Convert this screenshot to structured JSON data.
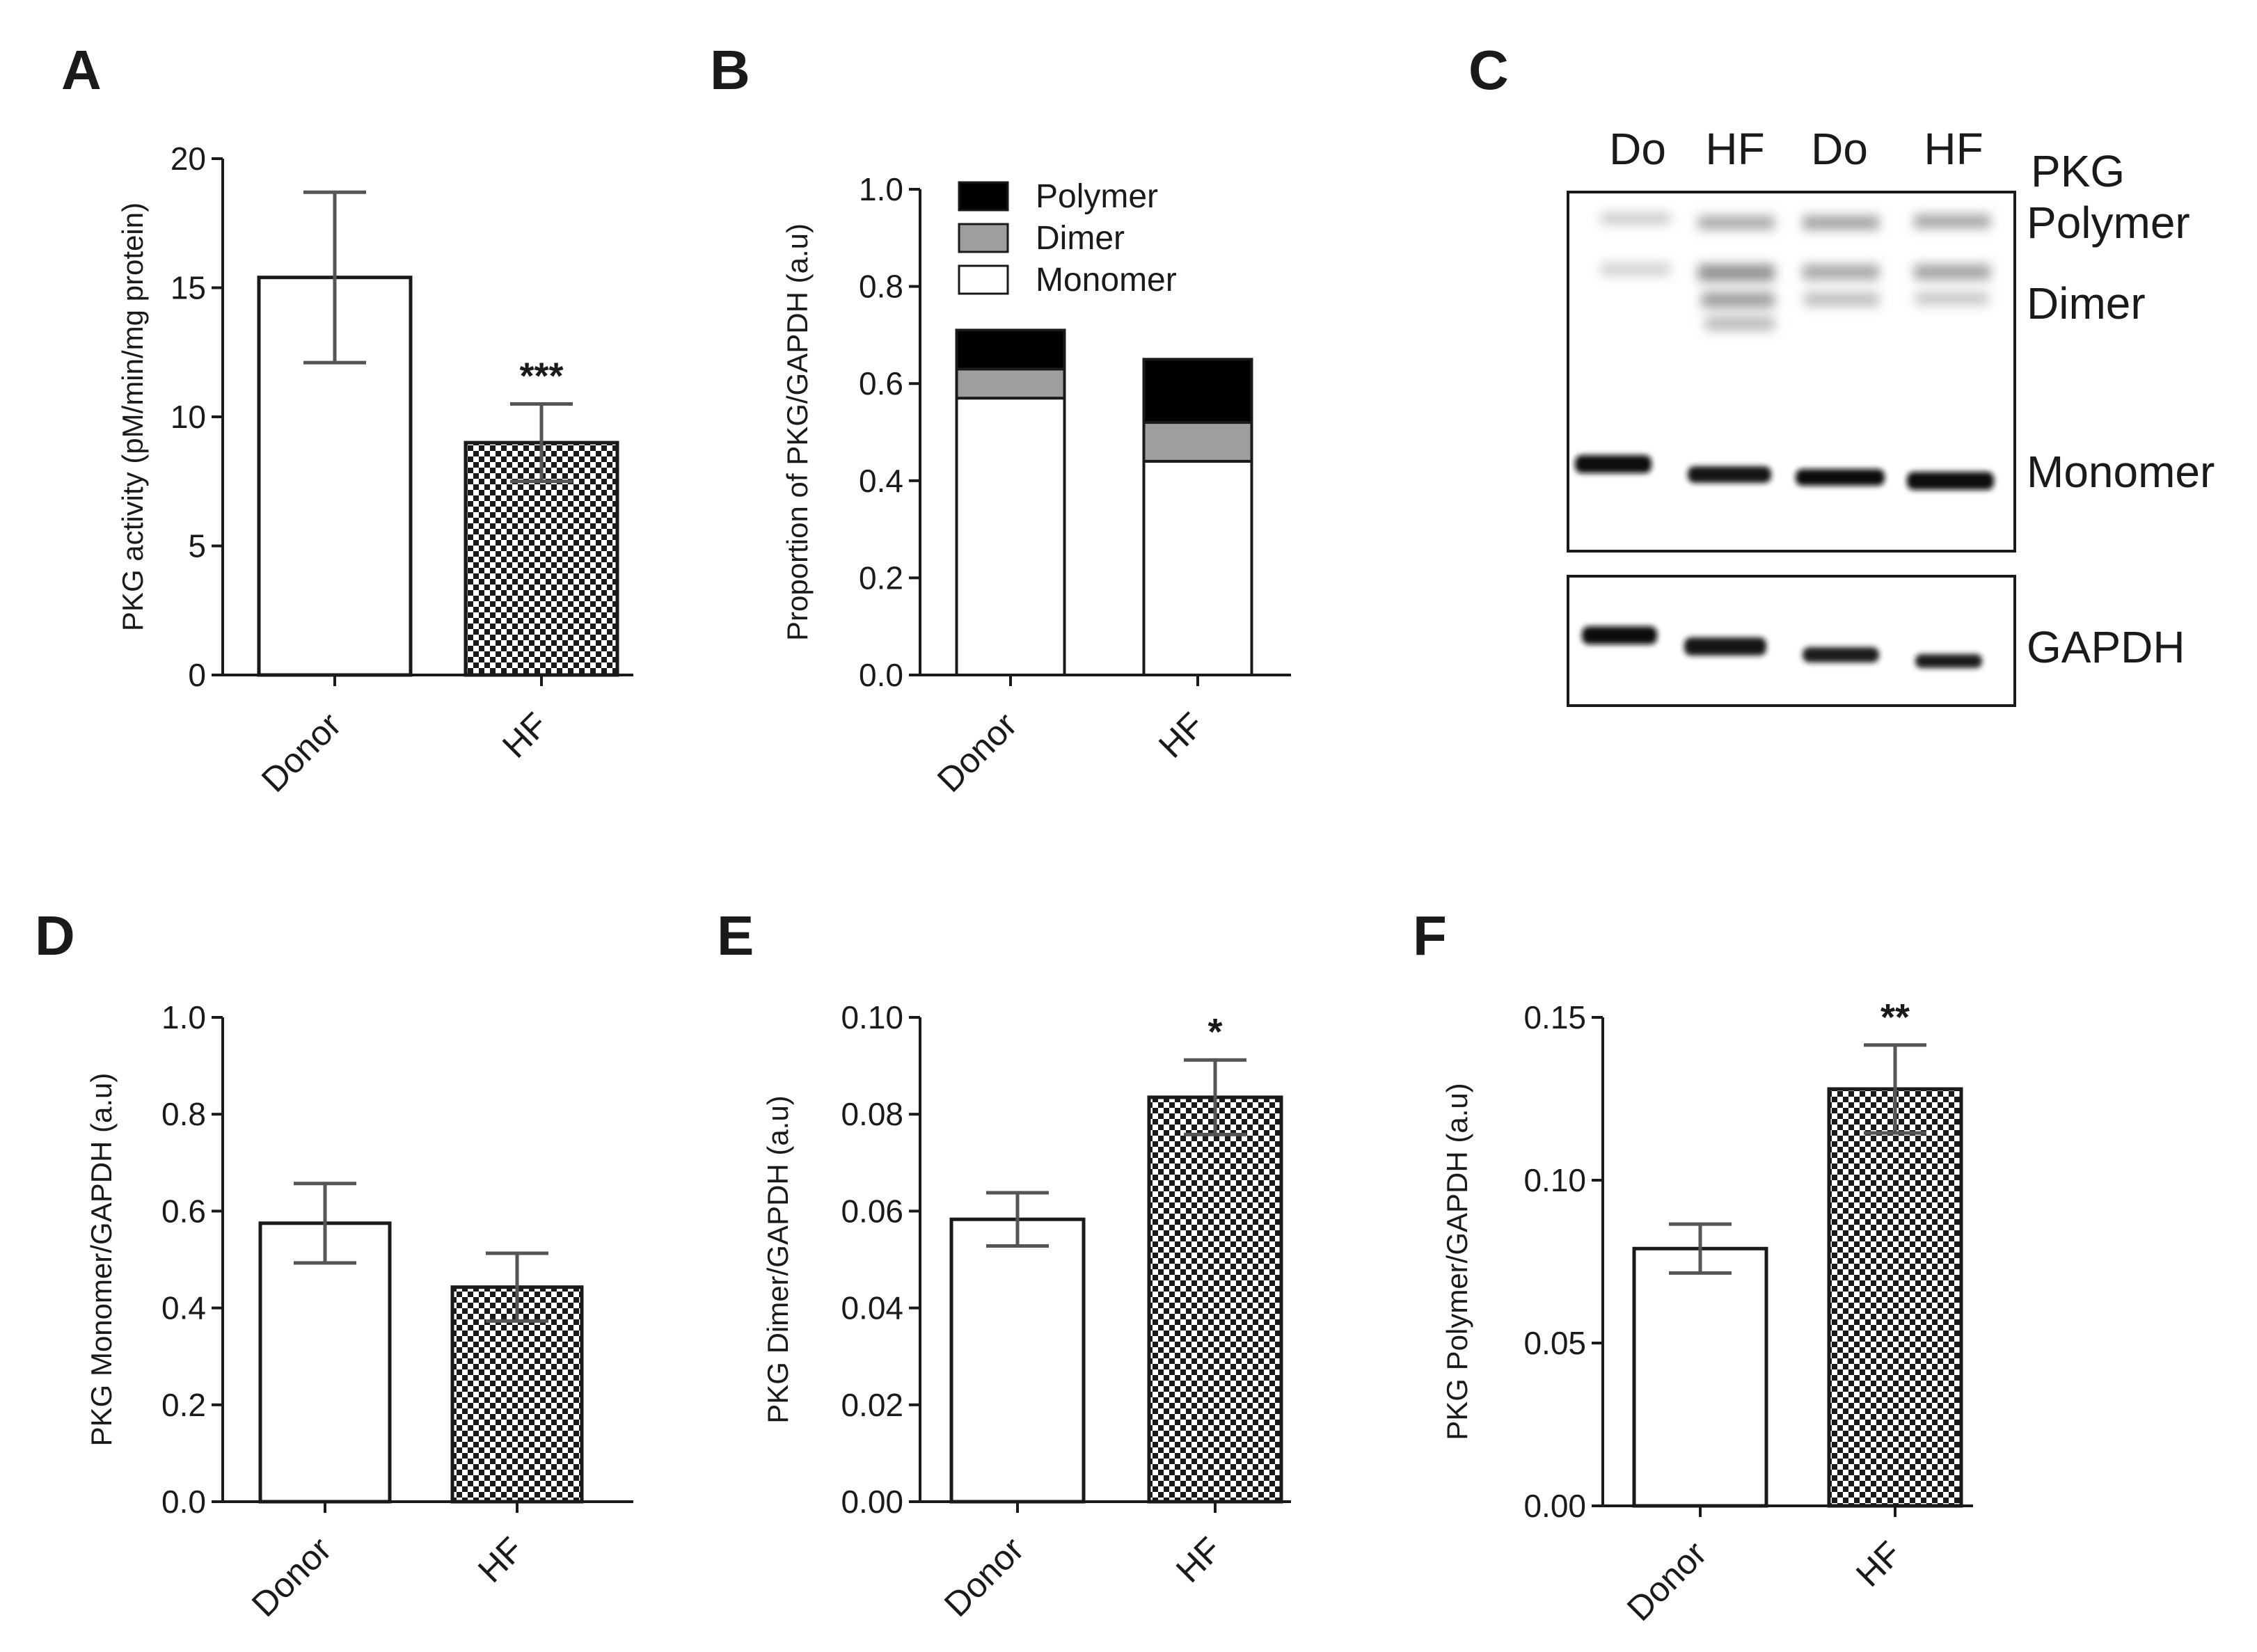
{
  "chart_data": [
    {
      "panel": "A",
      "type": "bar",
      "categories": [
        "Donor",
        "HF"
      ],
      "values": [
        15.4,
        9.0
      ],
      "errors": [
        3.3,
        1.5
      ],
      "fills": [
        "white",
        "checker"
      ],
      "ylabel": "PKG activity (pM/min/mg protein)",
      "ylim": [
        0,
        20
      ],
      "yticks": [
        "0",
        "5",
        "10",
        "15",
        "20"
      ],
      "significance": [
        "",
        "***"
      ]
    },
    {
      "panel": "B",
      "type": "bar",
      "stacked": true,
      "categories": [
        "Donor",
        "HF"
      ],
      "series": [
        {
          "name": "Monomer",
          "color": "#ffffff",
          "values": [
            0.57,
            0.44
          ]
        },
        {
          "name": "Dimer",
          "color": "#9e9e9e",
          "values": [
            0.06,
            0.08
          ]
        },
        {
          "name": "Polymer",
          "color": "#000000",
          "values": [
            0.08,
            0.13
          ]
        }
      ],
      "legend": [
        "Polymer",
        "Dimer",
        "Monomer"
      ],
      "ylabel": "Proportion of PKG/GAPDH (a.u)",
      "ylim": [
        0,
        1.0
      ],
      "yticks": [
        "0.0",
        "0.2",
        "0.4",
        "0.6",
        "0.8",
        "1.0"
      ]
    },
    {
      "panel": "D",
      "type": "bar",
      "categories": [
        "Donor",
        "HF"
      ],
      "values": [
        0.575,
        0.443
      ],
      "errors": [
        0.082,
        0.07
      ],
      "fills": [
        "white",
        "checker"
      ],
      "ylabel": "PKG Monomer/GAPDH (a.u)",
      "ylim": [
        0,
        1.0
      ],
      "yticks": [
        "0.0",
        "0.2",
        "0.4",
        "0.6",
        "0.8",
        "1.0"
      ],
      "significance": [
        "",
        ""
      ]
    },
    {
      "panel": "E",
      "type": "bar",
      "categories": [
        "Donor",
        "HF"
      ],
      "values": [
        0.0583,
        0.0835
      ],
      "errors": [
        0.0055,
        0.0077
      ],
      "fills": [
        "white",
        "checker"
      ],
      "ylabel": "PKG Dimer/GAPDH (a.u)",
      "ylim": [
        0,
        0.1
      ],
      "yticks": [
        "0.00",
        "0.02",
        "0.04",
        "0.06",
        "0.08",
        "0.10"
      ],
      "significance": [
        "",
        "*"
      ]
    },
    {
      "panel": "F",
      "type": "bar",
      "categories": [
        "Donor",
        "HF"
      ],
      "values": [
        0.079,
        0.128
      ],
      "errors": [
        0.0075,
        0.0135
      ],
      "fills": [
        "white",
        "checker"
      ],
      "ylabel": "PKG  Polymer/GAPDH (a.u)",
      "ylim": [
        0,
        0.15
      ],
      "yticks": [
        "0.00",
        "0.05",
        "0.10",
        "0.15"
      ],
      "significance": [
        "",
        "**"
      ]
    }
  ],
  "blot": {
    "panel": "C",
    "lanes": [
      "Do",
      "HF",
      "Do",
      "HF"
    ],
    "labels": [
      "PKG",
      "Polymer",
      "Dimer",
      "Monomer",
      "GAPDH"
    ]
  }
}
